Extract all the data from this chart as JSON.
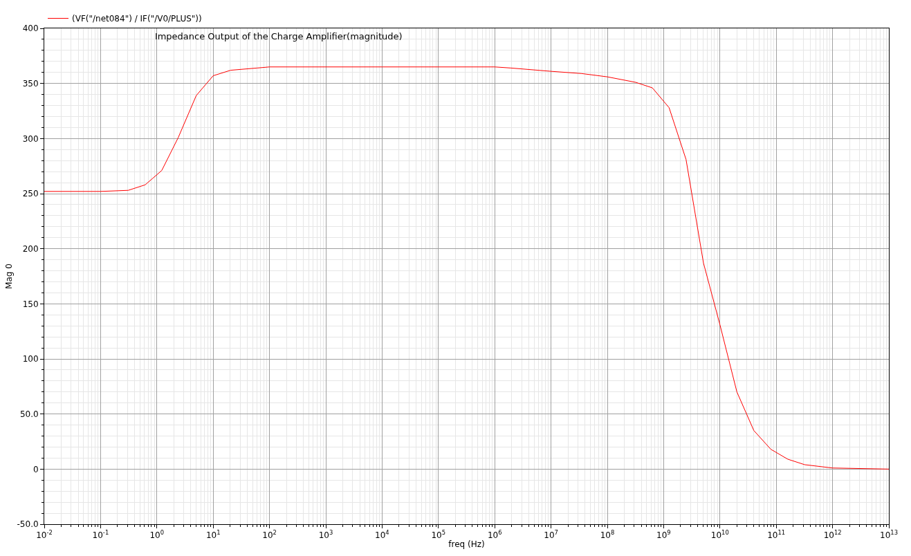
{
  "chart_data": {
    "type": "line",
    "title": "Impedance Output of the Charge Amplifier(magnitude)",
    "xlabel": "freq (Hz)",
    "ylabel": "Mag 0",
    "log": "x",
    "x": [
      0.01,
      0.1,
      0.31,
      0.62,
      1.22,
      2.4,
      5,
      10,
      20.5,
      60,
      100,
      1000,
      10000,
      100000,
      1000000,
      1950000,
      10000000,
      35000000,
      100000000,
      320000000,
      630000000,
      1250000000,
      2500000000,
      5100000000,
      10000000000,
      20000000000,
      40000000000,
      80000000000,
      160000000000,
      320000000000,
      1000000000000,
      10000000000000
    ],
    "series": [
      {
        "name": "(VF(\"/net084\") / IF(\"/V0/PLUS\"))",
        "color": "#ff0000",
        "values": [
          252,
          252,
          253,
          258,
          271,
          301,
          339,
          357,
          362,
          364,
          365,
          365,
          365,
          365,
          365,
          364,
          361,
          359,
          356,
          351,
          346,
          328,
          281,
          187,
          131,
          70,
          35,
          18,
          9,
          4,
          1,
          0
        ]
      }
    ],
    "xlim": [
      0.01,
      10000000000000
    ],
    "xticks": [
      {
        "value": 0.01,
        "label": "10$^{-2}$"
      },
      {
        "value": 0.1,
        "label": "10$^{-1}$"
      },
      {
        "value": 1,
        "label": "10$^{0}$"
      },
      {
        "value": 10,
        "label": "10$^{1}$"
      },
      {
        "value": 100,
        "label": "10$^{2}$"
      },
      {
        "value": 1000,
        "label": "10$^{3}$"
      },
      {
        "value": 10000,
        "label": "10$^{4}$"
      },
      {
        "value": 100000,
        "label": "10$^{5}$"
      },
      {
        "value": 1000000,
        "label": "10$^{6}$"
      },
      {
        "value": 10000000,
        "label": "10$^{7}$"
      },
      {
        "value": 100000000,
        "label": "10$^{8}$"
      },
      {
        "value": 1000000000,
        "label": "10$^{9}$"
      },
      {
        "value": 10000000000,
        "label": "10$^{10}$"
      },
      {
        "value": 100000000000,
        "label": "10$^{11}$"
      },
      {
        "value": 1000000000000,
        "label": "10$^{12}$"
      },
      {
        "value": 10000000000000,
        "label": "10$^{13}$"
      }
    ],
    "ylim": [
      -50,
      400
    ],
    "yticks": [
      {
        "value": -50,
        "label": "-50.0"
      },
      0,
      {
        "value": 50,
        "label": "50.0"
      },
      100,
      150,
      200,
      250,
      300,
      350,
      400
    ],
    "grid": true,
    "legend": "top left",
    "marker": "none",
    "line_style": "solid"
  }
}
